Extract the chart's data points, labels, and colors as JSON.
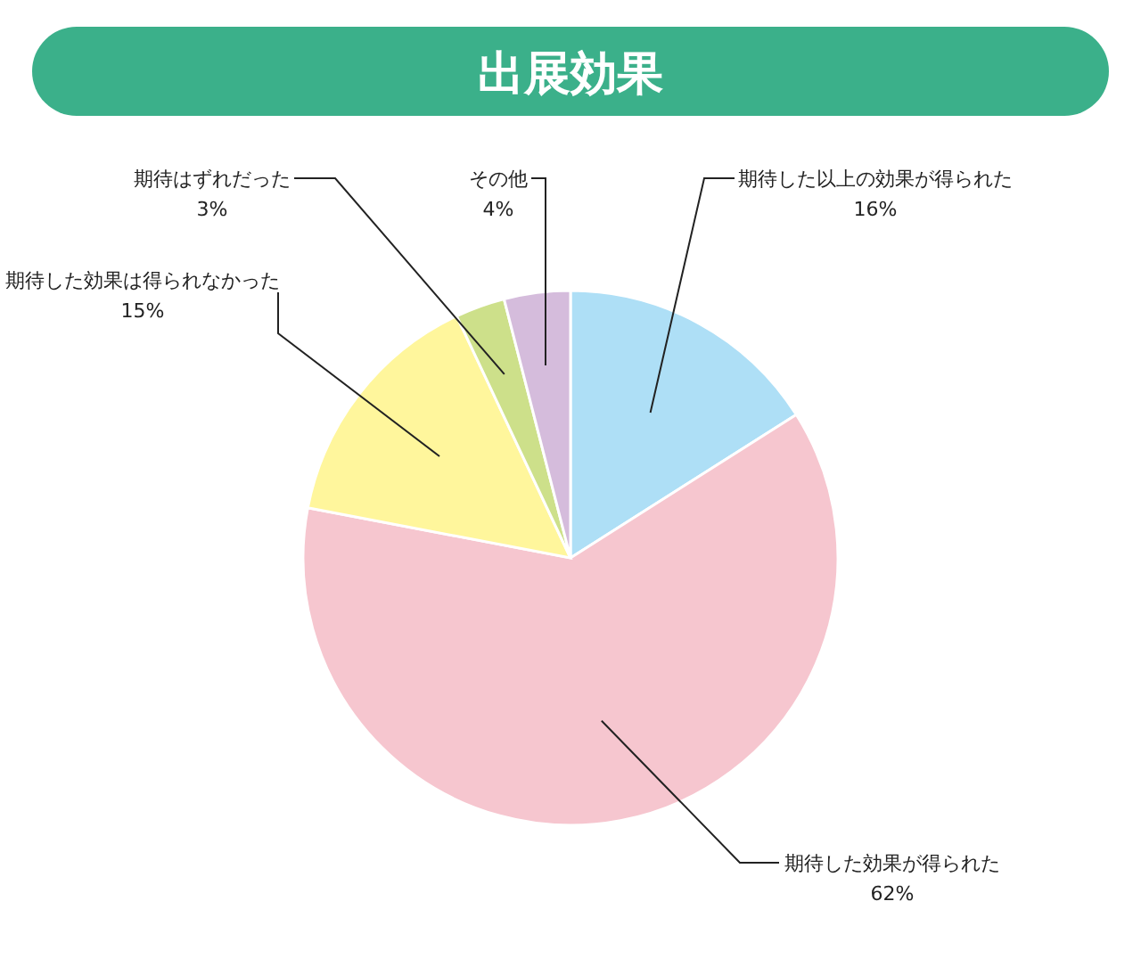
{
  "chart_data": {
    "type": "pie",
    "title": "出展効果",
    "categories": [
      "期待した以上の効果が得られた",
      "期待した効果が得られた",
      "期待した効果は得られなかった",
      "期待はずれだった",
      "その他"
    ],
    "values": [
      16,
      62,
      15,
      3,
      4
    ],
    "value_labels": [
      "16%",
      "62%",
      "15%",
      "3%",
      "4%"
    ],
    "colors": [
      "#aedff6",
      "#f6c6cf",
      "#fff69c",
      "#cde08a",
      "#d5bcdc"
    ]
  }
}
